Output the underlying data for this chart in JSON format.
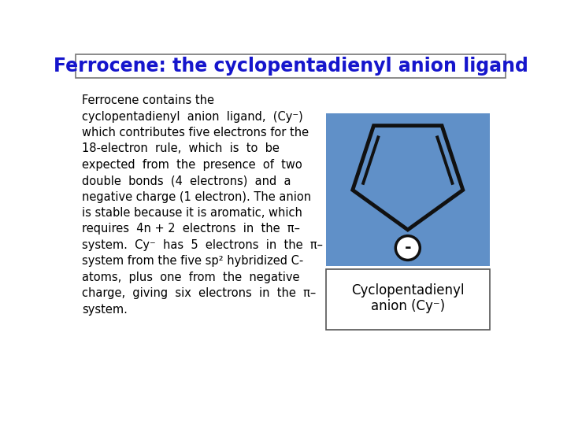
{
  "title": "Ferrocene: the cyclopentadienyl anion ligand",
  "title_color": "#1515cc",
  "title_fontsize": 17,
  "bg_color": "#ffffff",
  "caption_text": "Cyclopentadienyl\nanion (Cy⁻)",
  "diagram_bg": "#6090c8",
  "pentagon_edge_color": "#111111",
  "inner_lines_color": "#111111",
  "circle_color": "#ffffff",
  "circle_edge_color": "#111111",
  "minus_color": "#111111",
  "body_lines": [
    "Ferrocene contains the",
    "cyclopentadienyl  anion  ligand,  (Cy⁻)",
    "which contributes five electrons for the",
    "18-electron  rule,  which  is  to  be",
    "expected  from  the  presence  of  two",
    "double  bonds  (4  electrons)  and  a",
    "negative charge (1 electron). The anion",
    "is stable because it is aromatic, which",
    "requires  4n + 2  electrons  in  the  π–",
    "system.  Cy⁻  has  5  electrons  in  the  π–",
    "system from the five sp² hybridized C-",
    "atoms,  plus  one  from  the  negative",
    "charge,  giving  six  electrons  in  the  π–",
    "system."
  ]
}
